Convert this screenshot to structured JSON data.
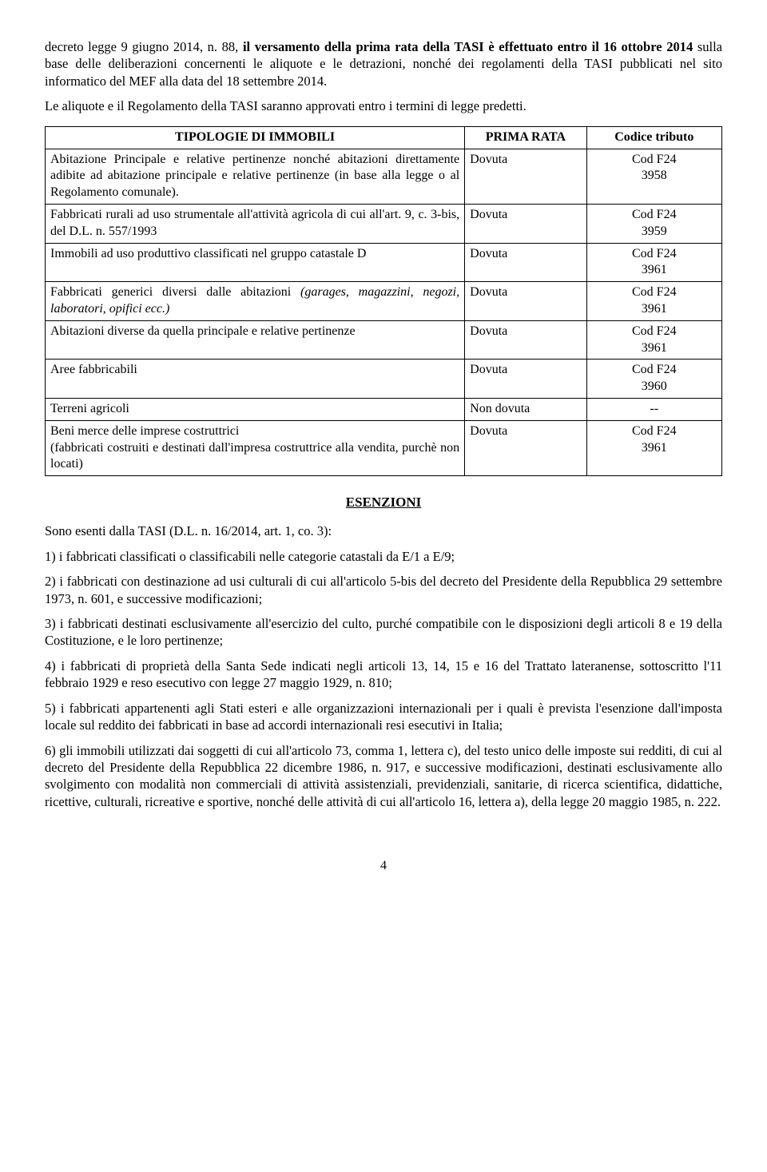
{
  "intro": {
    "p1a": "decreto legge 9 giugno 2014, n. 88, ",
    "p1b": "il versamento della prima rata della TASI è effettuato entro il 16 ottobre 2014",
    "p1c": " sulla base delle deliberazioni concernenti le aliquote e le detrazioni, nonché dei regolamenti della TASI pubblicati nel sito informatico del MEF alla data del 18 settembre 2014.",
    "p2": "Le aliquote e il Regolamento della TASI saranno approvati entro i termini di legge predetti."
  },
  "table": {
    "headers": {
      "tipologie": "TIPOLOGIE DI IMMOBILI",
      "prima": "PRIMA RATA",
      "codice": "Codice tributo"
    },
    "rows": [
      {
        "tipo": "Abitazione Principale e relative pertinenze nonché abitazioni direttamente adibite ad abitazione principale e relative pertinenze (in base alla legge o al Regolamento comunale).",
        "prima": "Dovuta",
        "cod1": "Cod F24",
        "cod2": "3958"
      },
      {
        "tipo": "Fabbricati rurali ad uso strumentale all'attività agricola di cui all'art. 9, c. 3-bis, del D.L. n. 557/1993",
        "prima": "Dovuta",
        "cod1": "Cod F24",
        "cod2": "3959"
      },
      {
        "tipo": "Immobili ad uso produttivo classificati nel gruppo catastale D",
        "prima": "Dovuta",
        "cod1": "Cod F24",
        "cod2": "3961"
      },
      {
        "tipo_a": "Fabbricati generici diversi dalle abitazioni ",
        "tipo_b": "(garages, magazzini, negozi, laboratori, opifici ecc.)",
        "prima": "Dovuta",
        "cod1": "Cod F24",
        "cod2": "3961"
      },
      {
        "tipo": "Abitazioni diverse da quella principale e relative pertinenze",
        "prima": "Dovuta",
        "cod1": "Cod F24",
        "cod2": "3961"
      },
      {
        "tipo": "Aree fabbricabili",
        "prima": "Dovuta",
        "cod1": "Cod F24",
        "cod2": "3960"
      },
      {
        "tipo": "Terreni agricoli",
        "prima": "Non dovuta",
        "cod1": "--",
        "cod2": ""
      },
      {
        "tipo_a": "Beni merce delle imprese costruttrici",
        "tipo_b": "(fabbricati costruiti e destinati dall'impresa costruttrice alla vendita, purchè non locati)",
        "prima": "Dovuta",
        "cod1": "Cod F24",
        "cod2": "3961"
      }
    ]
  },
  "esenzioni": {
    "title": "ESENZIONI",
    "lead": "Sono esenti dalla TASI (D.L. n. 16/2014, art. 1, co. 3):",
    "items": {
      "i1": "1)  i fabbricati classificati o classificabili nelle categorie catastali da E/1 a E/9;",
      "i2": "2) i  fabbricati con destinazione ad usi culturali di cui all'articolo 5-bis del decreto del Presidente della Repubblica 29 settembre 1973, n. 601, e successive modificazioni;",
      "i3": "3) i fabbricati destinati esclusivamente all'esercizio del culto, purché compatibile con le disposizioni degli articoli 8 e 19 della Costituzione, e le loro pertinenze;",
      "i4": "4) i fabbricati di proprietà della Santa Sede indicati negli articoli 13, 14, 15 e 16 del Trattato lateranense, sottoscritto l'11 febbraio 1929 e reso esecutivo con legge 27 maggio 1929, n. 810;",
      "i5": "5) i fabbricati appartenenti agli Stati esteri e alle organizzazioni internazionali per i quali è prevista l'esenzione dall'imposta locale sul reddito dei fabbricati in base ad accordi internazionali resi esecutivi in Italia;",
      "i6": "6)  gli immobili utilizzati dai soggetti di cui all'articolo 73, comma 1, lettera c), del testo unico delle imposte sui redditi, di cui al decreto del Presidente della Repubblica 22 dicembre 1986, n. 917, e successive modificazioni, destinati esclusivamente allo svolgimento con modalità non commerciali di attività assistenziali, previdenziali, sanitarie, di ricerca scientifica, didattiche, ricettive, culturali, ricreative e sportive, nonché delle attività di cui all'articolo 16, lettera a), della legge 20 maggio 1985, n. 222."
    }
  },
  "pagenum": "4"
}
